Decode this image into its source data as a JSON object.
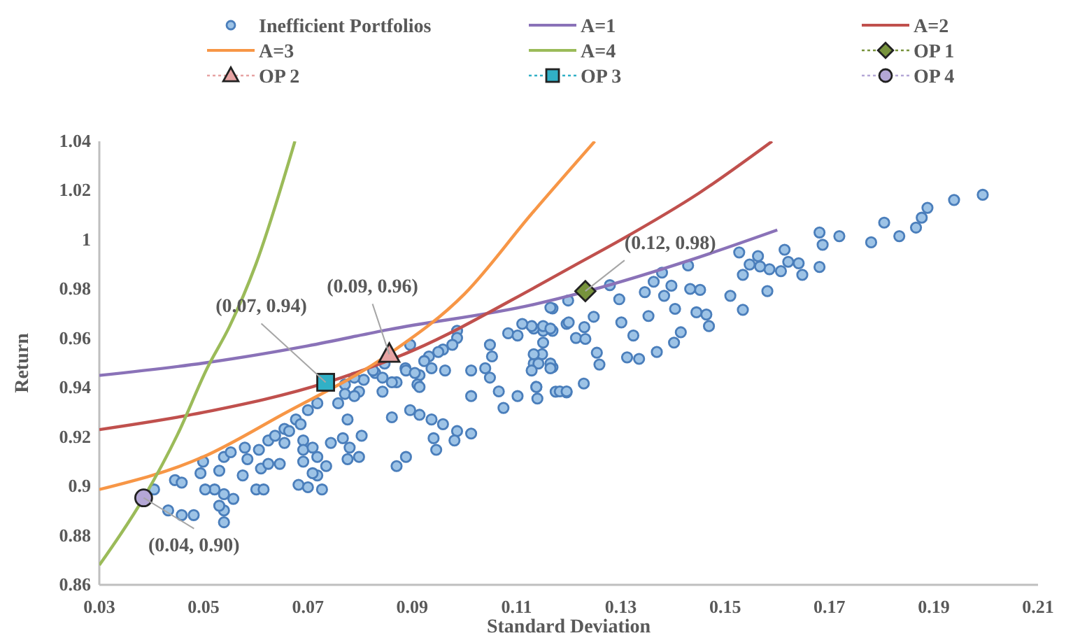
{
  "chart_data": {
    "type": "scatter",
    "xlabel": "Standard Deviation",
    "ylabel": "Return",
    "xlim": [
      0.03,
      0.21
    ],
    "ylim": [
      0.86,
      1.04
    ],
    "xticks": [
      0.03,
      0.05,
      0.07,
      0.09,
      0.11,
      0.13,
      0.15,
      0.17,
      0.19,
      0.21
    ],
    "yticks": [
      0.86,
      0.88,
      {
        "value": 0.9,
        "label": "0.9"
      },
      0.92,
      0.94,
      0.96,
      0.98,
      {
        "value": 1,
        "label": "1"
      },
      1.02,
      1.04
    ],
    "grid": false,
    "legend": "top",
    "series": [
      {
        "name": "Inefficient Portfolios",
        "marker": "circle",
        "color": "#9dc3e6",
        "x": [
          0.1994,
          0.1939,
          0.1888,
          0.1877,
          0.1866,
          0.1834,
          0.1805,
          0.178,
          0.1719,
          0.1681,
          0.1687,
          0.1681,
          0.1614,
          0.1621,
          0.1641,
          0.1648,
          0.1607,
          0.1585,
          0.1567,
          0.1547,
          0.1534,
          0.1527,
          0.1563,
          0.1581,
          0.1534,
          0.151,
          0.1469,
          0.1464,
          0.1445,
          0.1452,
          0.1433,
          0.1429,
          0.1379,
          0.1363,
          0.1346,
          0.1397,
          0.1383,
          0.1404,
          0.1353,
          0.1415,
          0.1402,
          0.1369,
          0.1335,
          0.1312,
          0.1324,
          0.1301,
          0.1297,
          0.1279,
          0.1248,
          0.1259,
          0.1254,
          0.123,
          0.1214,
          0.1232,
          0.1196,
          0.1169,
          0.1199,
          0.1229,
          0.1196,
          0.1175,
          0.1138,
          0.1151,
          0.1133,
          0.1169,
          0.1149,
          0.1169,
          0.1133,
          0.114,
          0.12,
          0.1165,
          0.1129,
          0.1111,
          0.1151,
          0.1165,
          0.1151,
          0.1133,
          0.1165,
          0.1142,
          0.1084,
          0.1102,
          0.1049,
          0.1053,
          0.104,
          0.1013,
          0.0986,
          0.0986,
          0.0977,
          0.0959,
          0.095,
          0.0932,
          0.0923,
          0.0937,
          0.0914,
          0.091,
          0.0896,
          0.0887,
          0.087,
          0.0847,
          0.0829,
          0.0807,
          0.0789,
          0.0771,
          0.0798,
          0.0843,
          0.0405,
          0.0432,
          0.0458,
          0.0481,
          0.0445,
          0.0458,
          0.0499,
          0.0494,
          0.053,
          0.0539,
          0.0552,
          0.0521,
          0.0503,
          0.0539,
          0.0557,
          0.0539,
          0.053,
          0.0539,
          0.0575,
          0.0584,
          0.0579,
          0.0606,
          0.0624,
          0.0637,
          0.0655,
          0.0677,
          0.07,
          0.0718,
          0.061,
          0.0624,
          0.0646,
          0.0601,
          0.0615,
          0.0655,
          0.0664,
          0.0686,
          0.0691,
          0.0691,
          0.0709,
          0.0718,
          0.0691,
          0.0735,
          0.0718,
          0.0682,
          0.07,
          0.0727,
          0.0709,
          0.0744,
          0.0767,
          0.0758,
          0.0771,
          0.0789,
          0.0776,
          0.0803,
          0.078,
          0.0776,
          0.0798,
          0.0825,
          0.0843,
          0.0861,
          0.0888,
          0.0905,
          0.0896,
          0.0914,
          0.0937,
          0.0959,
          0.0941,
          0.0946,
          0.0861,
          0.0888,
          0.087,
          0.0986,
          0.1013,
          0.0981,
          0.1013,
          0.1049,
          0.1066,
          0.1075,
          0.1102,
          0.1129,
          0.1165,
          0.1138,
          0.1183,
          0.1196,
          0.0914,
          0.0963
        ],
        "values": [
          1.0183,
          1.0162,
          1.013,
          1.009,
          1.005,
          1.0015,
          1.007,
          0.999,
          1.0015,
          1.003,
          0.998,
          0.989,
          0.996,
          0.9911,
          0.9905,
          0.9858,
          0.9873,
          0.9881,
          0.9892,
          0.99,
          0.9858,
          0.9949,
          0.9934,
          0.9792,
          0.9716,
          0.9773,
          0.965,
          0.9697,
          0.9706,
          0.9797,
          0.9801,
          0.9896,
          0.9867,
          0.983,
          0.9788,
          0.9814,
          0.9773,
          0.972,
          0.9691,
          0.9625,
          0.9583,
          0.9545,
          0.9517,
          0.9523,
          0.9612,
          0.9665,
          0.9759,
          0.9816,
          0.9688,
          0.9494,
          0.9542,
          0.9646,
          0.9602,
          0.9598,
          0.9659,
          0.9722,
          0.9754,
          0.9417,
          0.9381,
          0.9384,
          0.9403,
          0.9631,
          0.964,
          0.9631,
          0.9536,
          0.9483,
          0.9498,
          0.9356,
          0.9665,
          0.9725,
          0.965,
          0.9659,
          0.965,
          0.964,
          0.9583,
          0.9536,
          0.9498,
          0.9498,
          0.9621,
          0.9612,
          0.9574,
          0.9527,
          0.9479,
          0.947,
          0.9631,
          0.9602,
          0.9574,
          0.9555,
          0.9545,
          0.9527,
          0.9508,
          0.9479,
          0.9451,
          0.9413,
          0.9574,
          0.9479,
          0.9422,
          0.9498,
          0.946,
          0.9432,
          0.9441,
          0.9413,
          0.9384,
          0.9384,
          0.8987,
          0.8902,
          0.8883,
          0.8883,
          0.9025,
          0.9015,
          0.91,
          0.9053,
          0.9063,
          0.9119,
          0.9138,
          0.8987,
          0.8987,
          0.8968,
          0.8949,
          0.8902,
          0.8921,
          0.8854,
          0.9044,
          0.911,
          0.9157,
          0.9148,
          0.9186,
          0.9205,
          0.9233,
          0.9271,
          0.9309,
          0.9337,
          0.9072,
          0.9091,
          0.9091,
          0.8987,
          0.8987,
          0.9176,
          0.9224,
          0.9252,
          0.9186,
          0.9148,
          0.9157,
          0.9119,
          0.91,
          0.9082,
          0.9044,
          0.9006,
          0.8996,
          0.8987,
          0.9053,
          0.9176,
          0.9195,
          0.9337,
          0.9375,
          0.9366,
          0.9271,
          0.9205,
          0.9157,
          0.911,
          0.9119,
          0.947,
          0.9441,
          0.9422,
          0.947,
          0.946,
          0.9309,
          0.929,
          0.9271,
          0.9252,
          0.9195,
          0.9148,
          0.928,
          0.9119,
          0.9082,
          0.9224,
          0.9214,
          0.9186,
          0.9366,
          0.9441,
          0.9385,
          0.9318,
          0.9366,
          0.947,
          0.9479,
          0.9403,
          0.9385,
          0.9385,
          0.9403,
          0.947
        ]
      },
      {
        "name": "A=1",
        "type": "line",
        "marker": "none",
        "color": "#8a72b8",
        "x": [
          0.03,
          0.05,
          0.07,
          0.0855,
          0.1129,
          0.1232,
          0.145,
          0.16
        ],
        "values": [
          0.945,
          0.95,
          0.957,
          0.9636,
          0.9736,
          0.979,
          0.993,
          1.004
        ]
      },
      {
        "name": "A=2",
        "type": "line",
        "marker": "none",
        "color": "#c0504d",
        "x": [
          0.03,
          0.05,
          0.0734,
          0.09,
          0.1129,
          0.121,
          0.13,
          0.145,
          0.159
        ],
        "values": [
          0.923,
          0.93,
          0.942,
          0.955,
          0.98,
          0.9895,
          1.0,
          1.019,
          1.04
        ]
      },
      {
        "name": "A=3",
        "type": "line",
        "marker": "none",
        "color": "#f79646",
        "x": [
          0.03,
          0.05,
          0.065,
          0.0855,
          0.1,
          0.1129,
          0.125
        ],
        "values": [
          0.8987,
          0.912,
          0.929,
          0.9536,
          0.978,
          1.0106,
          1.04
        ]
      },
      {
        "name": "A=4",
        "type": "line",
        "marker": "none",
        "color": "#9bbb59",
        "x": [
          0.03,
          0.0385,
          0.045,
          0.0507,
          0.055,
          0.06,
          0.0675
        ],
        "values": [
          0.868,
          0.8953,
          0.921,
          0.948,
          0.965,
          0.99,
          1.04
        ]
      },
      {
        "name": "OP 1",
        "marker": "diamond",
        "line_style": "dotted",
        "color": "#77933c",
        "x": [
          0.1232
        ],
        "values": [
          0.9792
        ]
      },
      {
        "name": "OP 2",
        "marker": "triangle",
        "line_style": "dotted",
        "color": "#e6a3a3",
        "x": [
          0.0856
        ],
        "values": [
          0.9536
        ]
      },
      {
        "name": "OP 3",
        "marker": "square",
        "line_style": "dotted",
        "color": "#31b0c6",
        "x": [
          0.0734
        ],
        "values": [
          0.9422
        ]
      },
      {
        "name": "OP 4",
        "marker": "circle",
        "line_style": "dotted",
        "color": "#b4a7d6",
        "x": [
          0.0385
        ],
        "values": [
          0.8953
        ]
      }
    ],
    "annotations": [
      {
        "text": "(0.12, 0.98)",
        "x": 0.1232,
        "y": 0.9792
      },
      {
        "text": "(0.09, 0.96)",
        "x": 0.0856,
        "y": 0.9536
      },
      {
        "text": "(0.07, 0.94)",
        "x": 0.0734,
        "y": 0.9422
      },
      {
        "text": "(0.04, 0.90)",
        "x": 0.0385,
        "y": 0.8953
      }
    ]
  }
}
